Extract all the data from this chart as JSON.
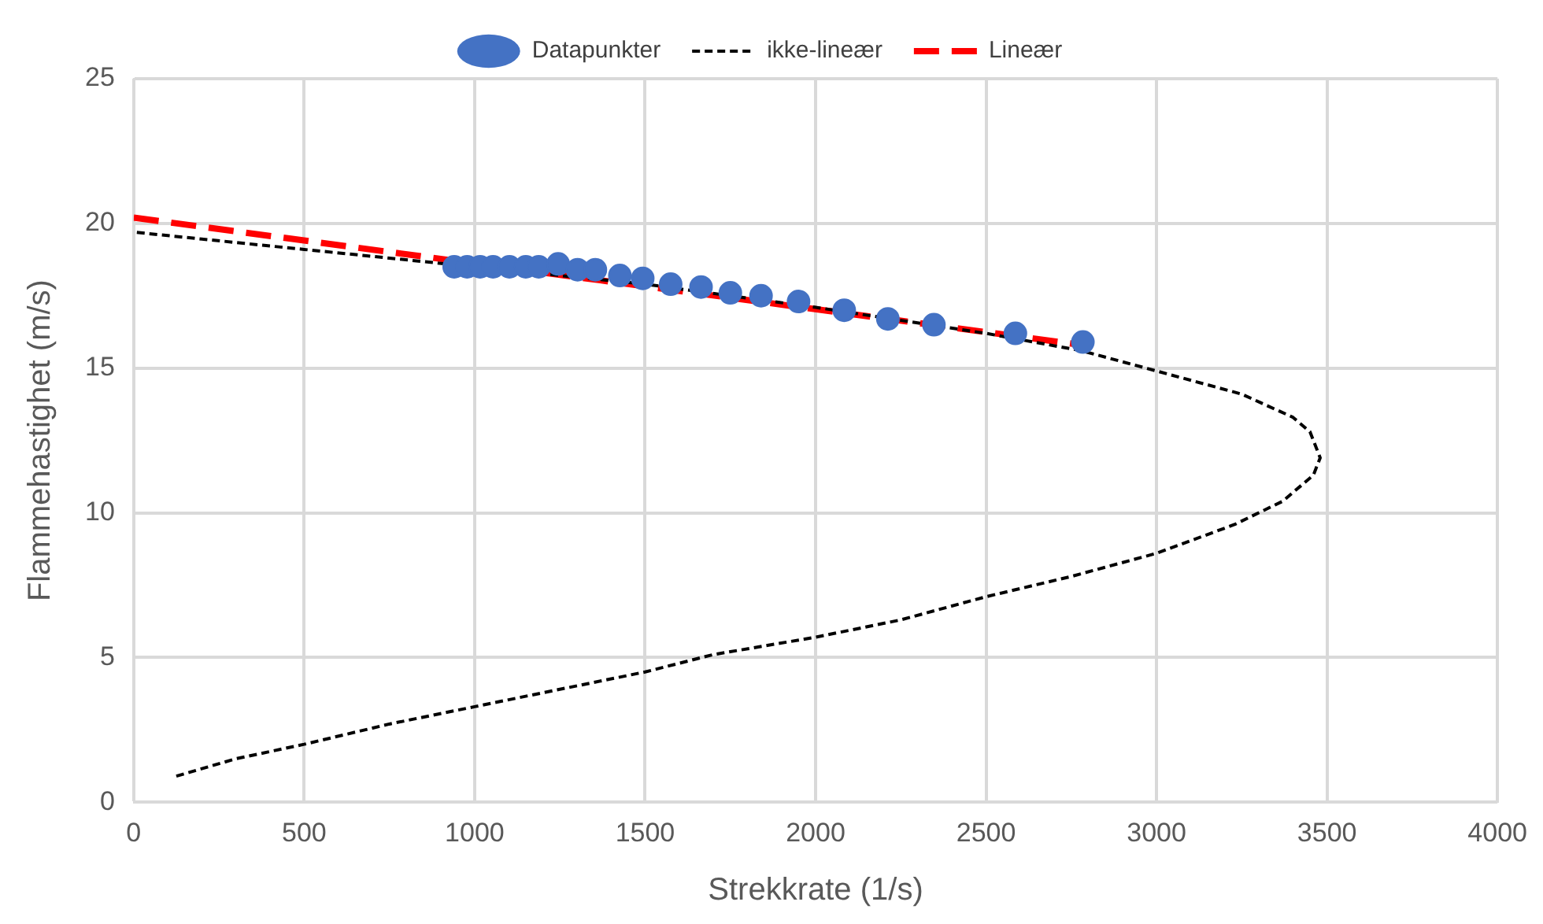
{
  "chart_data": {
    "type": "scatter",
    "xlabel": "Strekkrate (1/s)",
    "ylabel": "Flammehastighet (m/s)",
    "xlim": [
      0,
      4000
    ],
    "xticks": [
      0,
      500,
      1000,
      1500,
      2000,
      2500,
      3000,
      3500,
      4000
    ],
    "ylim": [
      0,
      25
    ],
    "yticks": [
      0,
      5,
      10,
      15,
      20,
      25
    ],
    "grid": true,
    "legend": "top",
    "series": [
      {
        "name": "Datapunkter",
        "marker": "circle",
        "color": "#4472c4",
        "x": [
          940,
          978,
          1016,
          1054,
          1102,
          1150,
          1188,
          1245,
          1302,
          1354,
          1426,
          1493,
          1575,
          1664,
          1750,
          1840,
          1950,
          2084,
          2212,
          2347,
          2586,
          2784
        ],
        "values": [
          18.5,
          18.5,
          18.5,
          18.5,
          18.5,
          18.5,
          18.5,
          18.6,
          18.4,
          18.4,
          18.2,
          18.1,
          17.9,
          17.8,
          17.6,
          17.5,
          17.3,
          17.0,
          16.7,
          16.5,
          16.2,
          15.9
        ]
      },
      {
        "name": "ikke-lineær",
        "type": "line",
        "line_style": "dotted",
        "marker": "none",
        "color": "#000000",
        "x": [
          125,
          300,
          500,
          750,
          1000,
          1250,
          1500,
          1700,
          2000,
          2250,
          2500,
          2750,
          3000,
          3230,
          3370,
          3460,
          3480,
          3450,
          3400,
          3250,
          3000,
          2780,
          2500,
          2000,
          1500,
          1000,
          500,
          0
        ],
        "values": [
          0.9,
          1.5,
          2.0,
          2.7,
          3.3,
          3.9,
          4.5,
          5.1,
          5.7,
          6.3,
          7.1,
          7.8,
          8.6,
          9.6,
          10.4,
          11.3,
          11.9,
          12.8,
          13.3,
          14.1,
          14.9,
          15.6,
          16.2,
          17.1,
          17.9,
          18.5,
          19.1,
          19.7
        ]
      },
      {
        "name": "Lineær",
        "type": "line",
        "line_style": "dashed",
        "marker": "none",
        "color": "#ff0000",
        "x": [
          0,
          2780
        ],
        "values": [
          20.2,
          15.8
        ]
      }
    ]
  }
}
